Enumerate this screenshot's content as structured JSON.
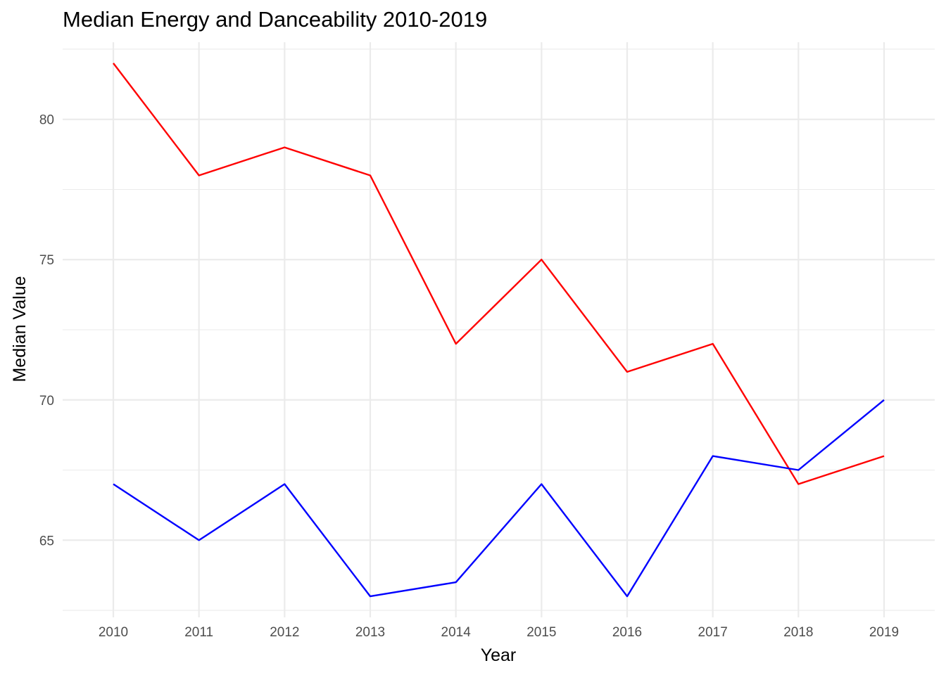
{
  "chart_data": {
    "type": "line",
    "title": "Median Energy and Danceability 2010-2019",
    "xlabel": "Year",
    "ylabel": "Median Value",
    "x": [
      2010,
      2011,
      2012,
      2013,
      2014,
      2015,
      2016,
      2017,
      2018,
      2019
    ],
    "x_tick_labels": [
      "2010",
      "2011",
      "2012",
      "2013",
      "2014",
      "2015",
      "2016",
      "2017",
      "2018",
      "2019"
    ],
    "y_ticks": [
      65,
      70,
      75,
      80
    ],
    "y_tick_labels": [
      "65",
      "70",
      "75",
      "80"
    ],
    "ylim": [
      62.25,
      82.75
    ],
    "grid": true,
    "legend": "none",
    "series": [
      {
        "color": "#ff0000",
        "values": [
          82,
          78,
          79,
          78,
          72,
          75,
          71,
          72,
          67,
          68
        ]
      },
      {
        "color": "#0000ff",
        "values": [
          67,
          65,
          67,
          63,
          63.5,
          67,
          63,
          68,
          67.5,
          70
        ]
      }
    ]
  }
}
